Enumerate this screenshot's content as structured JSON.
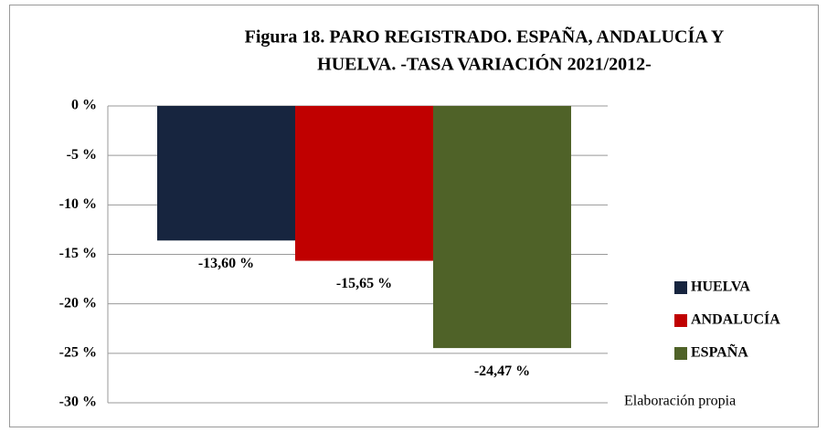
{
  "chart_data": {
    "type": "bar",
    "title": [
      "Figura 18. PARO REGISTRADO. ESPAÑA, ANDALUCÍA Y",
      "HUELVA. -TASA VARIACIÓN 2021/2012-"
    ],
    "categories": [
      null
    ],
    "series": [
      {
        "name": "HUELVA",
        "color": "#17253f",
        "values": [
          -13.6
        ],
        "value_labels": [
          "-13,60 %"
        ]
      },
      {
        "name": "ANDALUCÍA",
        "color": "#c00000",
        "values": [
          -15.65
        ],
        "value_labels": [
          "-15,65 %"
        ]
      },
      {
        "name": "ESPAÑA",
        "color": "#4f6228",
        "values": [
          -24.47
        ],
        "value_labels": [
          "-24,47 %"
        ]
      }
    ],
    "ylim": [
      -30,
      0
    ],
    "yticks": [
      {
        "value": 0,
        "label": "0 %"
      },
      {
        "value": -5,
        "label": "-5 %"
      },
      {
        "value": -10,
        "label": "-10 %"
      },
      {
        "value": -15,
        "label": "-15 %"
      },
      {
        "value": -20,
        "label": "-20 %"
      },
      {
        "value": -25,
        "label": "-25 %"
      },
      {
        "value": -30,
        "label": "-30 %"
      }
    ],
    "grid": true,
    "legend": "right",
    "annotation": "Elaboración propia"
  }
}
